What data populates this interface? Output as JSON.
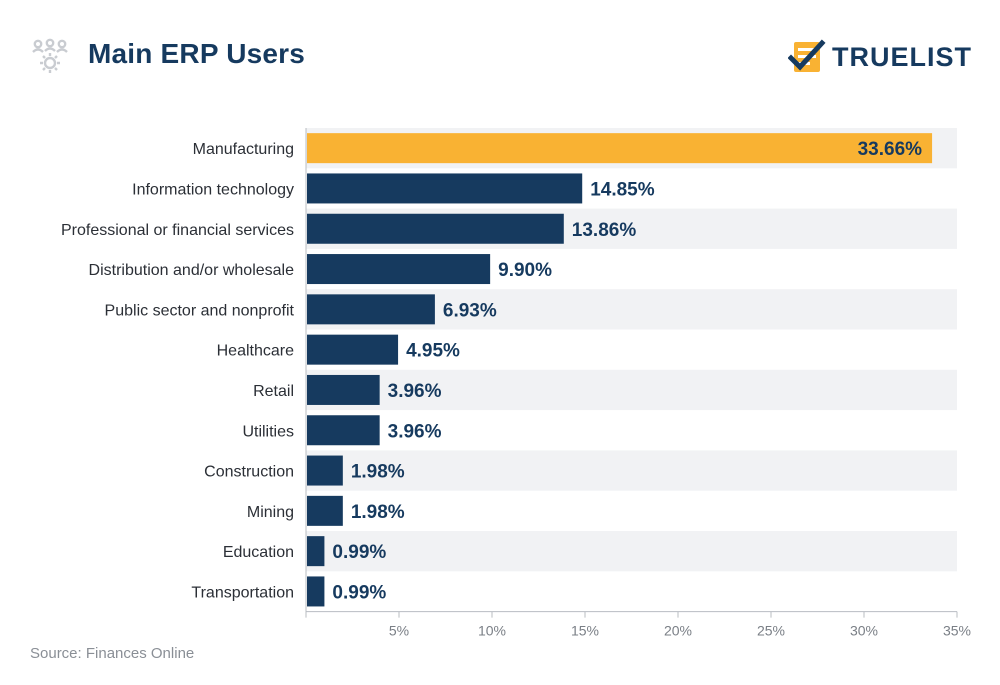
{
  "header": {
    "title": "Main ERP Users",
    "brand": "TRUELIST"
  },
  "colors": {
    "highlight": "#f9b233",
    "bar": "#163a5f",
    "stripe": "#f1f2f4",
    "axis": "#b8bcc2",
    "tick_text": "#7a7f86",
    "category_text": "#2b2f36",
    "value_text": "#163a5f"
  },
  "icons": {
    "title_icon": "gear-people-icon",
    "brand_icon": "checklist-icon"
  },
  "chart_data": {
    "type": "bar",
    "orientation": "horizontal",
    "title": "Main ERP Users",
    "categories": [
      "Manufacturing",
      "Information technology",
      "Professional or financial services",
      "Distribution and/or wholesale",
      "Public sector and nonprofit",
      "Healthcare",
      "Retail",
      "Utilities",
      "Construction",
      "Mining",
      "Education",
      "Transportation"
    ],
    "values": [
      33.66,
      14.85,
      13.86,
      9.9,
      6.93,
      4.95,
      3.96,
      3.96,
      1.98,
      1.98,
      0.99,
      0.99
    ],
    "value_labels": [
      "33.66%",
      "14.85%",
      "13.86%",
      "9.90%",
      "6.93%",
      "4.95%",
      "3.96%",
      "3.96%",
      "1.98%",
      "1.98%",
      "0.99%",
      "0.99%"
    ],
    "highlight_index": 0,
    "xlim": [
      0,
      35
    ],
    "xticks": [
      5,
      10,
      15,
      20,
      25,
      30,
      35
    ],
    "xtick_labels": [
      "5%",
      "10%",
      "15%",
      "20%",
      "25%",
      "30%",
      "35%"
    ],
    "xlabel": "",
    "ylabel": "",
    "grid": false,
    "legend": "none"
  },
  "footer": {
    "source": "Source: Finances Online"
  }
}
